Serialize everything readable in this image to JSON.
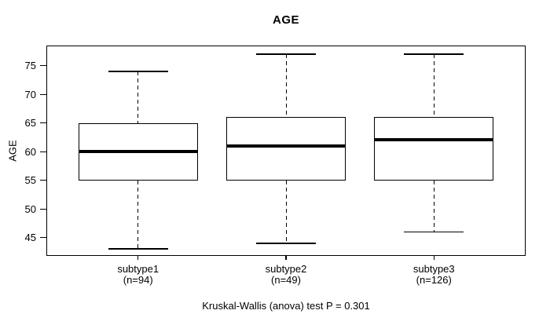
{
  "chart_data": {
    "type": "boxplot",
    "title": "AGE",
    "ylabel": "AGE",
    "xlabel": "",
    "ylim": [
      41.8,
      78.5
    ],
    "yticks": [
      45,
      50,
      55,
      60,
      65,
      70,
      75
    ],
    "grid": false,
    "legend": "none",
    "categories": [
      "subtype1",
      "subtype2",
      "subtype3"
    ],
    "category_sublabels": [
      "(n=94)",
      "(n=49)",
      "(n=126)"
    ],
    "series": [
      {
        "name": "subtype1",
        "n": 94,
        "whisker_low": 43,
        "q1": 55,
        "median": 60,
        "q3": 65,
        "whisker_high": 74,
        "outliers": []
      },
      {
        "name": "subtype2",
        "n": 49,
        "whisker_low": 44,
        "q1": 55,
        "median": 61,
        "q3": 66,
        "whisker_high": 77,
        "outliers": []
      },
      {
        "name": "subtype3",
        "n": 126,
        "whisker_low": 46,
        "q1": 55,
        "median": 62,
        "q3": 66,
        "whisker_high": 77,
        "outliers": []
      }
    ],
    "annotation": "Kruskal-Wallis (anova) test P = 0.301"
  },
  "colors": {
    "background": "#ffffff",
    "line": "#000000",
    "box_fill": "#ffffff",
    "text": "#000000"
  }
}
